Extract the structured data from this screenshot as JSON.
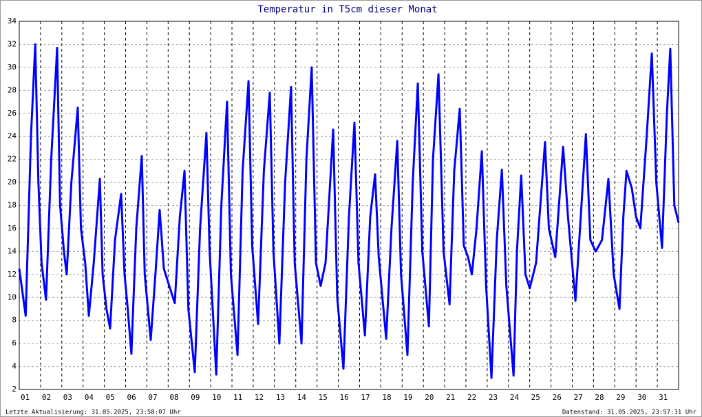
{
  "chart_data": {
    "type": "line",
    "title": "Temperatur in T5cm dieser Monat",
    "footer_left": "Letzte Aktualisierung: 31.05.2025, 23:58:07 Uhr",
    "footer_right": "Datenstand: 31.05.2025, 23:57:31 Uhr",
    "color": "#0000ff",
    "grid": true,
    "xlim": [
      1,
      32
    ],
    "xticks": [
      {
        "value": 1,
        "label": "01"
      },
      {
        "value": 2,
        "label": "02"
      },
      {
        "value": 3,
        "label": "03"
      },
      {
        "value": 4,
        "label": "04"
      },
      {
        "value": 5,
        "label": "05"
      },
      {
        "value": 6,
        "label": "06"
      },
      {
        "value": 7,
        "label": "07"
      },
      {
        "value": 8,
        "label": "08"
      },
      {
        "value": 9,
        "label": "09"
      },
      {
        "value": 10,
        "label": "10"
      },
      {
        "value": 11,
        "label": "11"
      },
      {
        "value": 12,
        "label": "12"
      },
      {
        "value": 13,
        "label": "13"
      },
      {
        "value": 14,
        "label": "14"
      },
      {
        "value": 15,
        "label": "15"
      },
      {
        "value": 16,
        "label": "16"
      },
      {
        "value": 17,
        "label": "17"
      },
      {
        "value": 18,
        "label": "18"
      },
      {
        "value": 19,
        "label": "19"
      },
      {
        "value": 20,
        "label": "20"
      },
      {
        "value": 21,
        "label": "21"
      },
      {
        "value": 22,
        "label": "22"
      },
      {
        "value": 23,
        "label": "23"
      },
      {
        "value": 24,
        "label": "24"
      },
      {
        "value": 25,
        "label": "25"
      },
      {
        "value": 26,
        "label": "26"
      },
      {
        "value": 27,
        "label": "27"
      },
      {
        "value": 28,
        "label": "28"
      },
      {
        "value": 29,
        "label": "29"
      },
      {
        "value": 30,
        "label": "30"
      },
      {
        "value": 31,
        "label": "31"
      }
    ],
    "ylim": [
      2,
      34
    ],
    "yticks": [
      2,
      4,
      6,
      8,
      10,
      12,
      14,
      16,
      18,
      20,
      22,
      24,
      26,
      28,
      30,
      32,
      34
    ],
    "x": [
      1.0,
      1.3,
      1.55,
      1.75,
      1.9,
      2.05,
      2.26,
      2.5,
      2.78,
      2.92,
      3.1,
      3.23,
      3.45,
      3.75,
      3.9,
      4.1,
      4.27,
      4.5,
      4.79,
      4.92,
      5.1,
      5.27,
      5.5,
      5.79,
      5.95,
      6.1,
      6.27,
      6.5,
      6.76,
      6.9,
      7.18,
      7.4,
      7.6,
      7.8,
      8.05,
      8.31,
      8.55,
      8.77,
      8.95,
      9.25,
      9.5,
      9.8,
      9.95,
      10.26,
      10.5,
      10.77,
      10.95,
      11.26,
      11.5,
      11.78,
      11.95,
      12.23,
      12.5,
      12.78,
      12.95,
      13.23,
      13.5,
      13.78,
      13.95,
      14.27,
      14.5,
      14.75,
      14.95,
      15.17,
      15.4,
      15.76,
      15.95,
      16.24,
      16.5,
      16.76,
      16.95,
      17.25,
      17.5,
      17.73,
      17.9,
      18.25,
      18.5,
      18.77,
      18.95,
      19.25,
      19.5,
      19.74,
      19.95,
      20.26,
      20.45,
      20.71,
      20.95,
      21.23,
      21.45,
      21.71,
      21.9,
      22.1,
      22.28,
      22.5,
      22.75,
      22.95,
      23.2,
      23.45,
      23.69,
      23.9,
      24.24,
      24.4,
      24.6,
      24.8,
      25.0,
      25.3,
      25.72,
      25.9,
      26.2,
      26.57,
      26.8,
      27.15,
      27.4,
      27.64,
      27.85,
      28.1,
      28.4,
      28.7,
      28.95,
      29.22,
      29.4,
      29.55,
      29.8,
      30.0,
      30.2,
      30.5,
      30.74,
      30.95,
      31.22,
      31.45,
      31.61,
      31.8,
      32.0
    ],
    "values": [
      12.5,
      8.4,
      24,
      32.0,
      20,
      13,
      9.8,
      22,
      31.7,
      18,
      14,
      12.0,
      20,
      26.5,
      16,
      13,
      8.4,
      13,
      20.3,
      12,
      9,
      7.3,
      15,
      19.0,
      12,
      9,
      5.1,
      16,
      22.3,
      12,
      6.3,
      12,
      17.6,
      12.5,
      11,
      9.5,
      17,
      21.0,
      9,
      3.5,
      16,
      24.3,
      14,
      3.3,
      18,
      27.0,
      12,
      5.0,
      21,
      28.8,
      14.5,
      7.7,
      21,
      27.8,
      14,
      6.0,
      20,
      28.3,
      13,
      6.0,
      22,
      30.0,
      13,
      11.0,
      13,
      24.6,
      10,
      3.8,
      17,
      25.2,
      13,
      6.7,
      17,
      20.7,
      13.5,
      6.4,
      16,
      23.6,
      12,
      5.0,
      20,
      28.6,
      14,
      7.5,
      22,
      29.4,
      14,
      9.4,
      21,
      26.4,
      14.5,
      13.5,
      12.0,
      16,
      22.7,
      11,
      3.0,
      15,
      21.1,
      11,
      3.2,
      14,
      20.6,
      12,
      10.8,
      13,
      23.5,
      16,
      13.5,
      23.1,
      17,
      9.7,
      17,
      24.2,
      15,
      14,
      15,
      20.3,
      12,
      9.0,
      17,
      21.0,
      19.5,
      17,
      16.0,
      24,
      31.2,
      20,
      14.3,
      26,
      31.6,
      18,
      16.5
    ]
  }
}
